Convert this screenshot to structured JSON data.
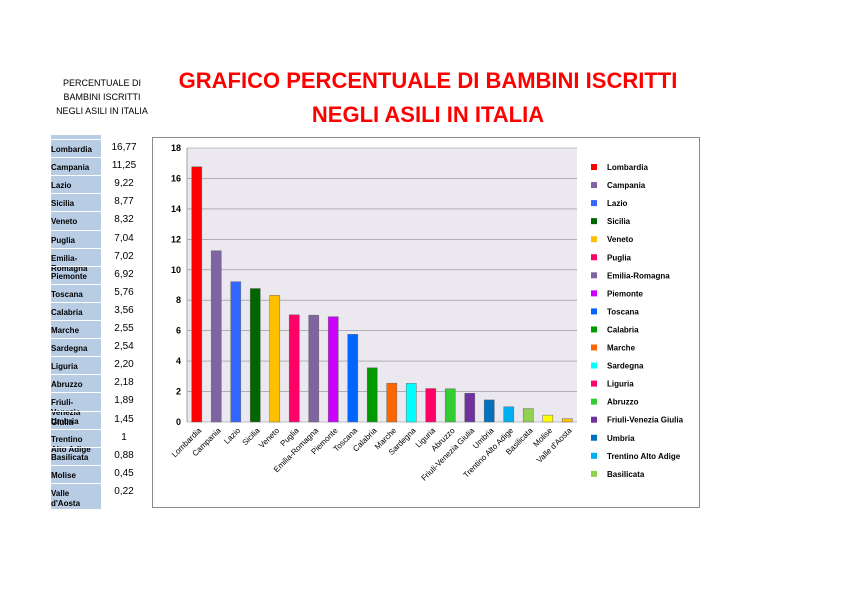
{
  "side_title": "PERCENTUALE DI BAMBINI ISCRITTI NEGLI ASILI IN ITALIA",
  "main_title": {
    "line1": "GRAFICO PERCENTUALE DI BAMBINI ISCRITTI",
    "line2": "NEGLI ASILI IN ITALIA"
  },
  "colors": {
    "title": "#ff0000",
    "table_fill": "#b8cce4",
    "plot_background": "#ebe9ef"
  },
  "table_rows": [
    {
      "name": "Lombardia",
      "value": "16,77"
    },
    {
      "name": "Campania",
      "value": "11,25"
    },
    {
      "name": "Lazio",
      "value": "9,22"
    },
    {
      "name": "Sicilia",
      "value": "8,77"
    },
    {
      "name": "Veneto",
      "value": "8,32"
    },
    {
      "name": "Puglia",
      "value": "7,04"
    },
    {
      "name": "Emilia-\nRomagna",
      "value": "7,02"
    },
    {
      "name": "Piemonte",
      "value": "6,92"
    },
    {
      "name": "Toscana",
      "value": "5,76"
    },
    {
      "name": "Calabria",
      "value": "3,56"
    },
    {
      "name": "Marche",
      "value": "2,55"
    },
    {
      "name": "Sardegna",
      "value": "2,54"
    },
    {
      "name": "Liguria",
      "value": "2,20"
    },
    {
      "name": "Abruzzo",
      "value": "2,18"
    },
    {
      "name": "Friuli-\nVenezia\nGiulia",
      "value": "1,89"
    },
    {
      "name": "Umbria",
      "value": "1,45"
    },
    {
      "name": "Trentino\nAlto Adige",
      "value": "1"
    },
    {
      "name": "Basilicata",
      "value": "0,88"
    },
    {
      "name": "Molise",
      "value": "0,45"
    },
    {
      "name": "Valle\nd'Aosta",
      "value": "0,22"
    }
  ],
  "chart_data": {
    "type": "bar",
    "title": "",
    "xlabel": "",
    "ylabel": "",
    "ylim": [
      0,
      18
    ],
    "yticks": [
      "0",
      "2",
      "4",
      "6",
      "8",
      "10",
      "12",
      "14",
      "16",
      "18"
    ],
    "grid": true,
    "legend_position": "right",
    "categories": [
      "Lombardia",
      "Campania",
      "Lazio",
      "Sicilia",
      "Veneto",
      "Puglia",
      "Emilia-Romagna",
      "Piemonte",
      "Toscana",
      "Calabria",
      "Marche",
      "Sardegna",
      "Liguria",
      "Abruzzo",
      "Friuli-Venezia Giulia",
      "Umbria",
      "Trentino Alto Adige",
      "Basilicata",
      "Molise",
      "Valle d'Aosta"
    ],
    "values": [
      16.77,
      11.25,
      9.22,
      8.77,
      8.32,
      7.04,
      7.02,
      6.92,
      5.76,
      3.56,
      2.55,
      2.54,
      2.2,
      2.18,
      1.89,
      1.45,
      1,
      0.88,
      0.45,
      0.22
    ],
    "bar_colors": [
      "#ff0000",
      "#8064a2",
      "#3366ff",
      "#006600",
      "#ffc000",
      "#ff0066",
      "#8064a2",
      "#cc00ff",
      "#0066ff",
      "#009900",
      "#ff6600",
      "#00ffff",
      "#ff0066",
      "#33cc33",
      "#7030a0",
      "#0070c0",
      "#00b0f0",
      "#92d050",
      "#ffff00",
      "#ffc000"
    ],
    "legend": [
      {
        "label": "Lombardia",
        "color": "#ff0000"
      },
      {
        "label": "Campania",
        "color": "#8064a2"
      },
      {
        "label": "Lazio",
        "color": "#3366ff"
      },
      {
        "label": "Sicilia",
        "color": "#006600"
      },
      {
        "label": "Veneto",
        "color": "#ffc000"
      },
      {
        "label": "Puglia",
        "color": "#ff0066"
      },
      {
        "label": "Emilia-Romagna",
        "color": "#8064a2"
      },
      {
        "label": "Piemonte",
        "color": "#cc00ff"
      },
      {
        "label": "Toscana",
        "color": "#0066ff"
      },
      {
        "label": "Calabria",
        "color": "#009900"
      },
      {
        "label": "Marche",
        "color": "#ff6600"
      },
      {
        "label": "Sardegna",
        "color": "#00ffff"
      },
      {
        "label": "Liguria",
        "color": "#ff0066"
      },
      {
        "label": "Abruzzo",
        "color": "#33cc33"
      },
      {
        "label": "Friuli-Venezia Giulia",
        "color": "#7030a0"
      },
      {
        "label": "Umbria",
        "color": "#0070c0"
      },
      {
        "label": "Trentino Alto Adige",
        "color": "#00b0f0"
      },
      {
        "label": "Basilicata",
        "color": "#92d050"
      }
    ]
  }
}
